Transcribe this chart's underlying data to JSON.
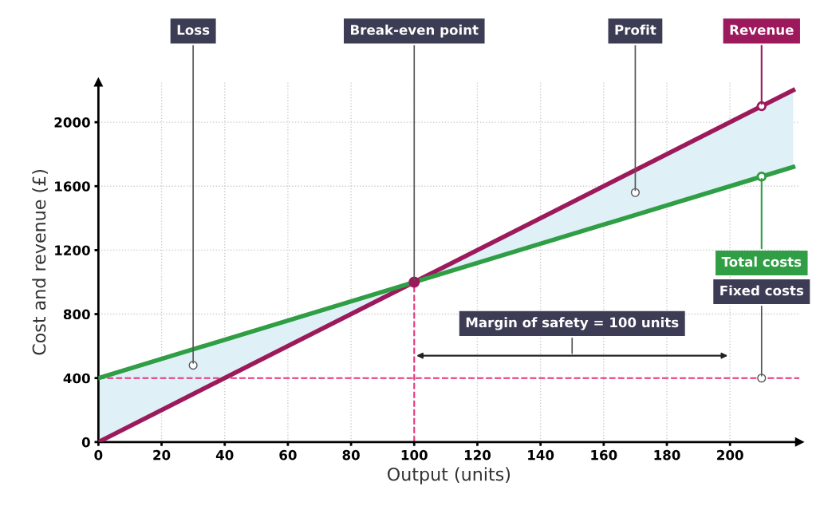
{
  "chart_data": {
    "type": "line",
    "xlabel": "Output (units)",
    "ylabel": "Cost and revenue (£)",
    "series": [
      {
        "name": "Revenue",
        "color": "#9c1a5c",
        "x": [
          0,
          210,
          220
        ],
        "values": [
          0,
          2100,
          2200
        ]
      },
      {
        "name": "Total costs",
        "color": "#2f9e44",
        "x": [
          0,
          210,
          220
        ],
        "values": [
          400,
          1660,
          1720
        ]
      }
    ],
    "xlim": [
      0,
      222
    ],
    "ylim": [
      0,
      2250
    ],
    "xticks": [
      0,
      20,
      40,
      60,
      80,
      100,
      120,
      140,
      160,
      180,
      200
    ],
    "yticks": [
      0,
      400,
      800,
      1200,
      1600,
      2000
    ],
    "grid": true,
    "marker": "none",
    "line_style": "solid",
    "ref_lines": [
      {
        "axis": "y",
        "value": 400,
        "label": "Fixed costs",
        "color": "#e8347c",
        "line_style": "dashed"
      },
      {
        "axis": "x",
        "value": 100,
        "color": "#e8347c",
        "line_style": "dashed"
      }
    ],
    "annotations": [
      {
        "text": "Loss",
        "x": 30,
        "y": 480
      },
      {
        "text": "Break-even point",
        "x": 100,
        "y": 1000
      },
      {
        "text": "Profit",
        "x": 170,
        "y": 1560
      },
      "Margin of safety = 100 units"
    ]
  }
}
